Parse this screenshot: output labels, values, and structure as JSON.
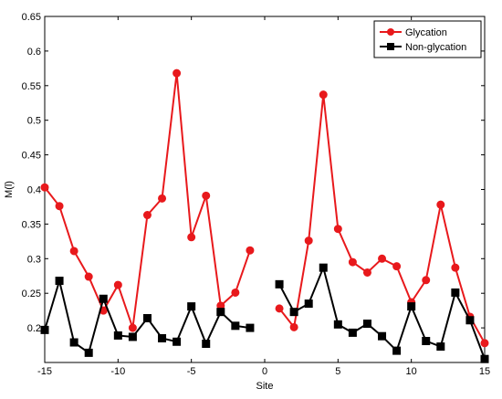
{
  "chart_data": {
    "type": "line",
    "xlabel": "Site",
    "ylabel": "M(l)",
    "xlim": [
      -15,
      15
    ],
    "ylim": [
      0.15,
      0.65
    ],
    "xticks": [
      -15,
      -10,
      -5,
      0,
      5,
      10,
      15
    ],
    "yticks": [
      0.2,
      0.25,
      0.3,
      0.35,
      0.4,
      0.45,
      0.5,
      0.55,
      0.6,
      0.65
    ],
    "grid": false,
    "legend_position": "top-right",
    "series": [
      {
        "name": "Glycation",
        "color": "#e8191c",
        "marker": "circle",
        "segments": [
          {
            "x": [
              -15,
              -14,
              -13,
              -12,
              -11,
              -10,
              -9,
              -8,
              -7,
              -6,
              -5,
              -4,
              -3,
              -2,
              -1
            ],
            "y": [
              0.403,
              0.376,
              0.311,
              0.274,
              0.225,
              0.262,
              0.2,
              0.363,
              0.387,
              0.568,
              0.331,
              0.391,
              0.232,
              0.251,
              0.312
            ]
          },
          {
            "x": [
              1,
              2,
              3,
              4,
              5,
              6,
              7,
              8,
              9,
              10,
              11,
              12,
              13,
              14,
              15
            ],
            "y": [
              0.228,
              0.201,
              0.326,
              0.537,
              0.343,
              0.295,
              0.28,
              0.3,
              0.289,
              0.237,
              0.269,
              0.378,
              0.287,
              0.216,
              0.178
            ]
          }
        ]
      },
      {
        "name": "Non-glycation",
        "color": "#000000",
        "marker": "square",
        "segments": [
          {
            "x": [
              -15,
              -14,
              -13,
              -12,
              -11,
              -10,
              -9,
              -8,
              -7,
              -6,
              -5,
              -4,
              -3,
              -2,
              -1
            ],
            "y": [
              0.197,
              0.268,
              0.179,
              0.164,
              0.242,
              0.189,
              0.187,
              0.214,
              0.185,
              0.18,
              0.231,
              0.177,
              0.223,
              0.203,
              0.2
            ]
          },
          {
            "x": [
              1,
              2,
              3,
              4,
              5,
              6,
              7,
              8,
              9,
              10,
              11,
              12,
              13,
              14,
              15
            ],
            "y": [
              0.263,
              0.223,
              0.235,
              0.287,
              0.205,
              0.193,
              0.206,
              0.188,
              0.167,
              0.231,
              0.181,
              0.173,
              0.251,
              0.211,
              0.155
            ]
          }
        ]
      }
    ]
  }
}
